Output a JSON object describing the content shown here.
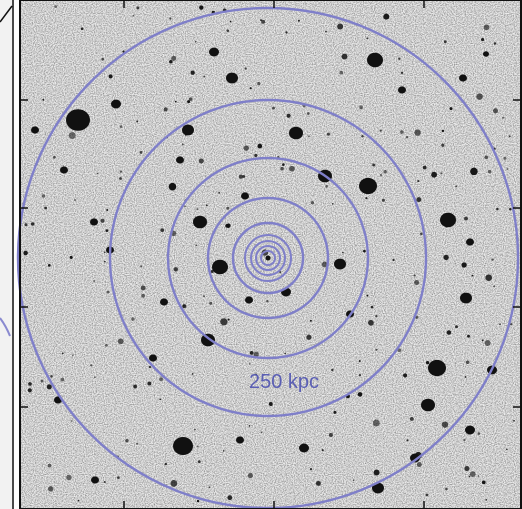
{
  "figure": {
    "scale_label": "250 kpc",
    "colors": {
      "background": "#ededed",
      "sources": "#111111",
      "rings": "#7f7fc9",
      "label": "#5b5fb4",
      "frame": "#111111",
      "left_panel_line": "#8a8ad0"
    },
    "ring_count": 10
  }
}
